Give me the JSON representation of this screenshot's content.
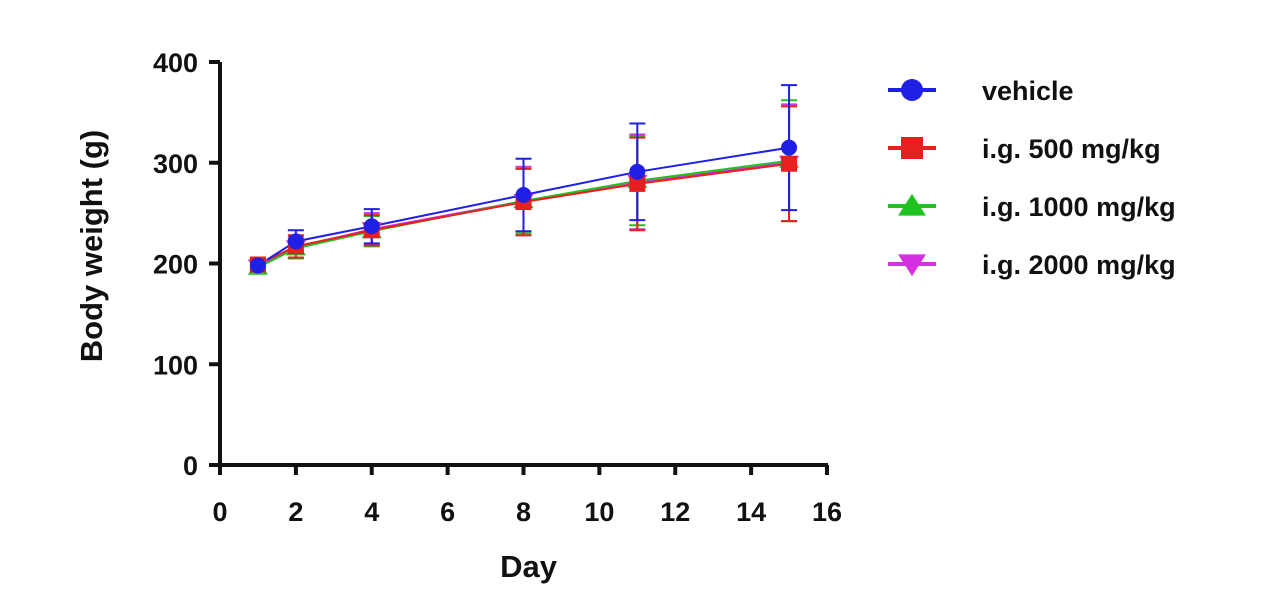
{
  "chart_data": {
    "type": "line",
    "title": "",
    "xlabel": "Day",
    "ylabel": "Body weight (g)",
    "xlim": [
      0,
      16
    ],
    "ylim": [
      0,
      400
    ],
    "x_ticks": [
      0,
      2,
      4,
      6,
      8,
      10,
      12,
      14,
      16
    ],
    "y_ticks": [
      0,
      100,
      200,
      300,
      400
    ],
    "grid": false,
    "legend_position": "right",
    "x": [
      1,
      2,
      4,
      8,
      11,
      15
    ],
    "series": [
      {
        "name": "vehicle",
        "color": "#1f1fe6",
        "marker": "circle",
        "values": [
          198,
          222,
          237,
          268,
          291,
          315
        ],
        "error": [
          6,
          11,
          17,
          36,
          48,
          62
        ]
      },
      {
        "name": "i.g. 500 mg/kg",
        "color": "#e61f1f",
        "marker": "square",
        "values": [
          199,
          217,
          233,
          261,
          279,
          299
        ],
        "error": [
          6,
          11,
          15,
          33,
          46,
          57
        ]
      },
      {
        "name": "i.g. 1000 mg/kg",
        "color": "#1fc21f",
        "marker": "triangle-up",
        "values": [
          196,
          215,
          232,
          262,
          282,
          302
        ],
        "error": [
          6,
          10,
          15,
          32,
          44,
          60
        ]
      },
      {
        "name": "i.g. 2000 mg/kg",
        "color": "#d42fe0",
        "marker": "triangle-down",
        "values": [
          197,
          216,
          234,
          262,
          281,
          300
        ],
        "error": [
          6,
          11,
          16,
          34,
          47,
          58
        ]
      }
    ]
  }
}
